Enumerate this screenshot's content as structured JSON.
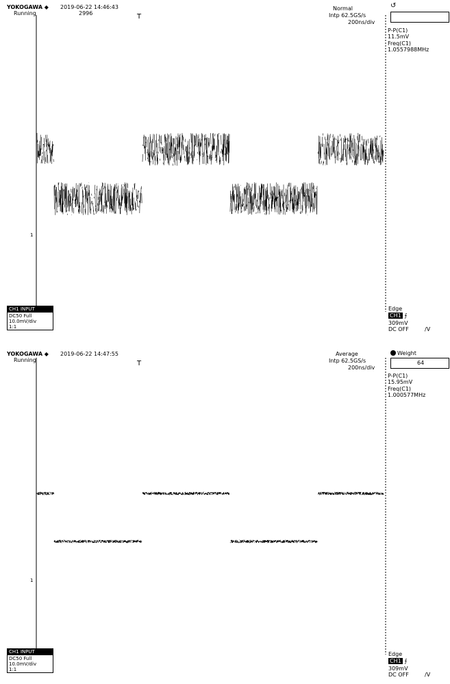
{
  "screens": [
    {
      "brand": "YOKOGAWA ◆",
      "datetime": "2019-06-22 14:46:43",
      "run_state": "Running",
      "count": "2996",
      "trigger_marker": "T",
      "acq_mode": "Normal",
      "record": "Intp 62.5GS/s",
      "timebase": "200ns/div",
      "acq_box_icon": "undo-icon",
      "acq_box_value": "",
      "meas_line1": "P-P(C1)",
      "meas_val1": "11.5mV",
      "meas_line2": "Freq(C1)",
      "meas_val2": "1.0557988MHz",
      "ch_header": "CH1 INPUT",
      "ch_coupling": "DC50 Full",
      "ch_scale": "10.0mV/div",
      "ch_probe": "1:1",
      "trig_type": "Edge",
      "trig_source": "CH1",
      "trig_level": "309mV",
      "trig_coupling": "DC OFF",
      "ground_marker": "1",
      "waveform": {
        "style": "noisy",
        "levels": [
          "high",
          "low",
          "high",
          "low",
          "high"
        ]
      }
    },
    {
      "brand": "YOKOGAWA ◆",
      "datetime": "2019-06-22 14:47:55",
      "run_state": "Running",
      "count": "",
      "trigger_marker": "T",
      "acq_mode": "Average",
      "record": "Intp 62.5GS/s",
      "timebase": "200ns/div",
      "acq_box_icon": "weight-bullet-icon",
      "acq_box_label": "Weight",
      "acq_box_value": "64",
      "meas_line1": "P-P(C1)",
      "meas_val1": "15.95mV",
      "meas_line2": "Freq(C1)",
      "meas_val2": "1.000577MHz",
      "ch_header": "CH1 INPUT",
      "ch_coupling": "DC50 Full",
      "ch_scale": "10.0mV/div",
      "ch_probe": "1:1",
      "trig_type": "Edge",
      "trig_source": "CH1",
      "trig_level": "309mV",
      "trig_coupling": "DC OFF",
      "ground_marker": "1",
      "waveform": {
        "style": "averaged",
        "levels": [
          "high",
          "low",
          "high",
          "low",
          "high"
        ]
      }
    }
  ]
}
